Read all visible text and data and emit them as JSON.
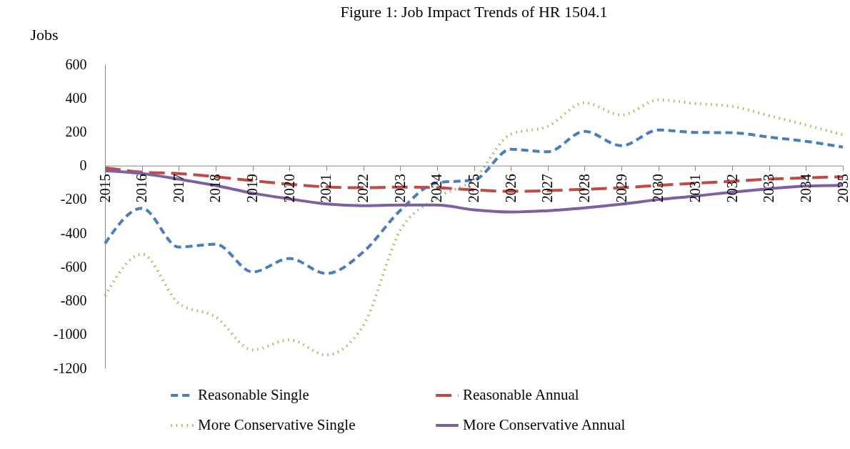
{
  "chart_data": {
    "type": "line",
    "title": "Figure 1: Job Impact Trends of HR 1504.1",
    "ylabel": "Jobs",
    "categories": [
      "2015",
      "2016",
      "2017",
      "2018",
      "2019",
      "2020",
      "2021",
      "2022",
      "2023",
      "2024",
      "2025",
      "2026",
      "2027",
      "2028",
      "2029",
      "2030",
      "2031",
      "2032",
      "2033",
      "2034",
      "2035"
    ],
    "ylim": [
      -1200,
      600
    ],
    "yticks": [
      -1200,
      -1000,
      -800,
      -600,
      -400,
      -200,
      0,
      200,
      400,
      600
    ],
    "grid": false,
    "legend": "bottom",
    "series": [
      {
        "name": "Reasonable Single",
        "color": "#4a7ebb",
        "line_style": "dashed",
        "values": [
          -461,
          -252,
          -482,
          -465,
          -630,
          -550,
          -639,
          -512,
          -266,
          -101,
          -85,
          97,
          82,
          203,
          118,
          211,
          197,
          195,
          169,
          144,
          110
        ]
      },
      {
        "name": "Reasonable Annual",
        "color": "#be4b48",
        "line_style": "longdash",
        "values": [
          -13,
          -38,
          -47,
          -66,
          -89,
          -110,
          -126,
          -131,
          -127,
          -131,
          -144,
          -152,
          -148,
          -140,
          -131,
          -117,
          -104,
          -93,
          -80,
          -72,
          -66
        ]
      },
      {
        "name": "More Conservative Single",
        "color": "#98b954",
        "line_style": "dotted",
        "values": [
          -770,
          -525,
          -816,
          -897,
          -1091,
          -1032,
          -1121,
          -948,
          -385,
          -192,
          -80,
          186,
          233,
          372,
          300,
          389,
          368,
          351,
          296,
          241,
          182
        ]
      },
      {
        "name": "More Conservative Annual",
        "color": "#7d60a0",
        "line_style": "solid",
        "values": [
          -30,
          -47,
          -80,
          -118,
          -163,
          -197,
          -227,
          -237,
          -233,
          -233,
          -262,
          -275,
          -267,
          -250,
          -228,
          -201,
          -180,
          -157,
          -137,
          -121,
          -117
        ]
      }
    ]
  }
}
